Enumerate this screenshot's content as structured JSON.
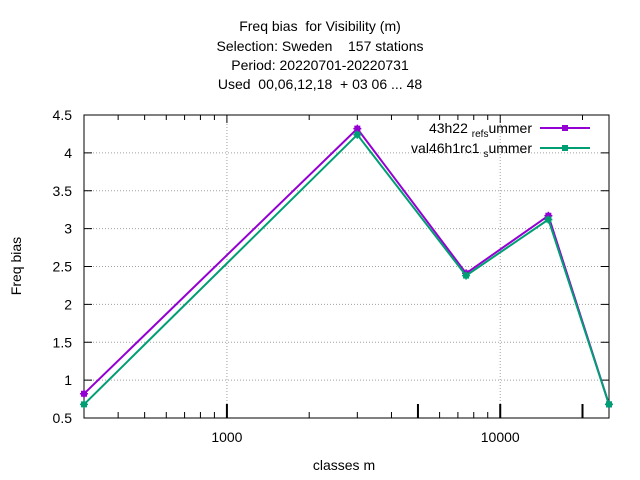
{
  "chart_data": {
    "type": "line",
    "title_lines": [
      "Freq bias  for Visibility (m)",
      "Selection: Sweden    157 stations",
      "Period: 20220701-20220731",
      "Used  00,06,12,18  + 03 06 ... 48"
    ],
    "xlabel": "classes m",
    "ylabel": "Freq bias",
    "x_scale": "log",
    "xlim": [
      300,
      25000
    ],
    "ylim": [
      0.5,
      4.5
    ],
    "x_tick_labels": [
      {
        "value": 1000,
        "label": "1000"
      },
      {
        "value": 10000,
        "label": "10000"
      }
    ],
    "y_tick_labels": [
      {
        "value": 0.5,
        "label": "0.5"
      },
      {
        "value": 1,
        "label": "1"
      },
      {
        "value": 1.5,
        "label": "1.5"
      },
      {
        "value": 2,
        "label": "2"
      },
      {
        "value": 2.5,
        "label": "2.5"
      },
      {
        "value": 3,
        "label": "3"
      },
      {
        "value": 3.5,
        "label": "3.5"
      },
      {
        "value": 4,
        "label": "4"
      },
      {
        "value": 4.5,
        "label": "4.5"
      }
    ],
    "grid": true,
    "legend_position": "top-right",
    "series": [
      {
        "name": "43h22_ref_summer",
        "legend_main": "43h22",
        "legend_parts": [
          {
            "text": "ref",
            "sub": true
          },
          {
            "text": "s",
            "sub": true
          },
          {
            "text": "ummer",
            "sub": false
          }
        ],
        "color": "#9400d3",
        "x": [
          300,
          3000,
          7500,
          15000,
          25000
        ],
        "y": [
          0.82,
          4.32,
          2.41,
          3.17,
          0.68
        ]
      },
      {
        "name": "val46h1rc1_summer",
        "legend_main": "val46h1rc1",
        "legend_parts": [
          {
            "text": "s",
            "sub": true
          },
          {
            "text": "ummer",
            "sub": false
          }
        ],
        "color": "#009e73",
        "x": [
          300,
          3000,
          7500,
          15000,
          25000
        ],
        "y": [
          0.68,
          4.24,
          2.38,
          3.12,
          0.68
        ]
      }
    ]
  }
}
